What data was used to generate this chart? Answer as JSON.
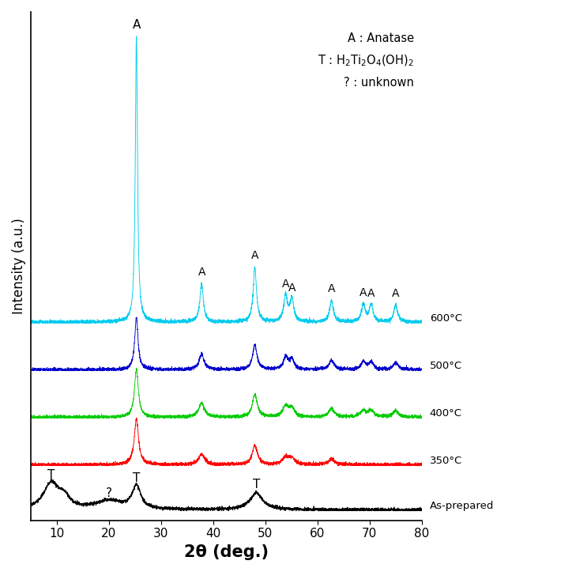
{
  "x_min": 5,
  "x_max": 80,
  "xlabel": "2θ (deg.)",
  "ylabel": "Intensity (a.u.)",
  "colors": {
    "as_prepared": "#000000",
    "350": "#ff0000",
    "400": "#00cc00",
    "500": "#0000cc",
    "600": "#00ccee"
  },
  "labels": {
    "as_prepared": "As-prepared",
    "350": "350°C",
    "400": "400°C",
    "500": "500°C",
    "600": "600°C"
  },
  "background_color": "#ffffff",
  "noise_seed": 42
}
